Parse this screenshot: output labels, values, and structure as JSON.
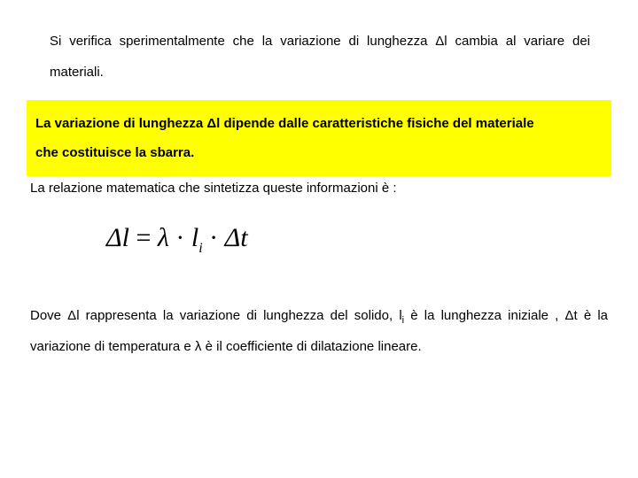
{
  "para1": "Si verifica sperimentalmente che la variazione di lunghezza Δl cambia al variare dei materiali.",
  "highlight_line1": "La variazione di lunghezza  Δl dipende dalle caratteristiche fisiche del materiale",
  "highlight_line2": "che costituisce la sbarra.",
  "para2": "La relazione matematica che sintetizza queste informazioni è :",
  "formula_delta": "Δ",
  "formula_l": "l",
  "formula_eq": " = ",
  "formula_lambda": "λ",
  "formula_dot": " · ",
  "formula_li": "l",
  "formula_i": "i",
  "formula_dt_d": "Δ",
  "formula_dt_t": "t",
  "para3_a": "Dove Δl  rappresenta la variazione di lunghezza del solido, l",
  "para3_sub": "i",
  "para3_b": " è la lunghezza iniziale , Δt è la variazione di temperatura e λ è il coefficiente di dilatazione lineare.",
  "colors": {
    "background": "#ffffff",
    "text": "#000000",
    "highlight": "#ffff00"
  }
}
